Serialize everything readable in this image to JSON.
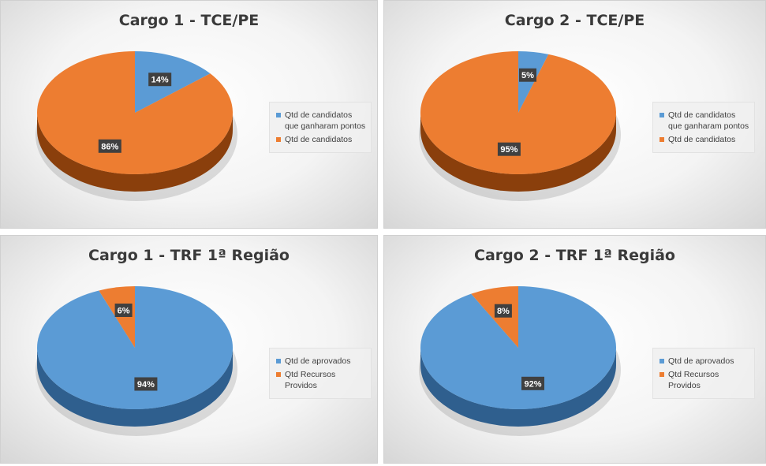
{
  "colors": {
    "blue": "#5b9bd5",
    "orange": "#ed7d31"
  },
  "chart_data": [
    {
      "type": "pie",
      "title": "Cargo 1 - TCE/PE",
      "categories": [
        "Qtd de candidatos que ganharam pontos",
        "Qtd de candidatos"
      ],
      "values": [
        14,
        86
      ],
      "labels": [
        "14%",
        "86%"
      ],
      "colors": [
        "#5b9bd5",
        "#ed7d31"
      ],
      "legend_position": "right",
      "style": "3d"
    },
    {
      "type": "pie",
      "title": "Cargo 2 - TCE/PE",
      "categories": [
        "Qtd de candidatos que ganharam pontos",
        "Qtd de candidatos"
      ],
      "values": [
        5,
        95
      ],
      "labels": [
        "5%",
        "95%"
      ],
      "colors": [
        "#5b9bd5",
        "#ed7d31"
      ],
      "legend_position": "right",
      "style": "3d"
    },
    {
      "type": "pie",
      "title": "Cargo 1 - TRF 1ª Região",
      "categories": [
        "Qtd de aprovados",
        "Qtd Recursos Providos"
      ],
      "values": [
        94,
        6
      ],
      "labels": [
        "94%",
        "6%"
      ],
      "colors": [
        "#5b9bd5",
        "#ed7d31"
      ],
      "legend_position": "right",
      "style": "3d"
    },
    {
      "type": "pie",
      "title": "Cargo 2 - TRF 1ª Região",
      "categories": [
        "Qtd de aprovados",
        "Qtd Recursos Providos"
      ],
      "values": [
        92,
        8
      ],
      "labels": [
        "92%",
        "8%"
      ],
      "colors": [
        "#5b9bd5",
        "#ed7d31"
      ],
      "legend_position": "right",
      "style": "3d"
    }
  ]
}
